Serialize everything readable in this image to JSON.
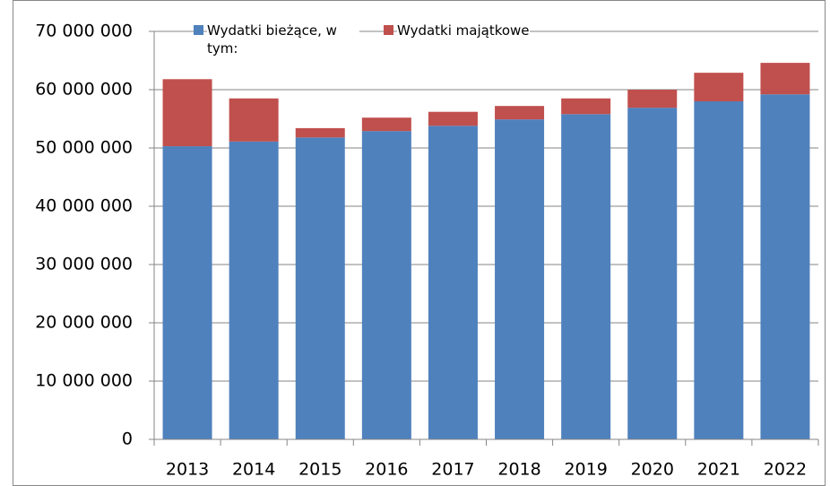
{
  "chart_data": {
    "type": "stacked_bar",
    "categories": [
      "2013",
      "2014",
      "2015",
      "2016",
      "2017",
      "2018",
      "2019",
      "2020",
      "2021",
      "2022"
    ],
    "series": [
      {
        "name": "Wydatki bieżące, w tym:",
        "color": "#4f81bd",
        "values": [
          50300000,
          51100000,
          51800000,
          52900000,
          53800000,
          54900000,
          55800000,
          56900000,
          58000000,
          59200000
        ]
      },
      {
        "name": "Wydatki majątkowe",
        "color": "#c0504d",
        "values": [
          11500000,
          7400000,
          1600000,
          2300000,
          2400000,
          2300000,
          2700000,
          3100000,
          4900000,
          5400000
        ]
      }
    ],
    "ylim": [
      0,
      70000000
    ],
    "yticks": [
      0,
      {
        "value": 10000000,
        "label": "10 000 000"
      },
      {
        "value": 20000000,
        "label": "20 000 000"
      },
      {
        "value": 30000000,
        "label": "30 000 000"
      },
      {
        "value": 40000000,
        "label": "40 000 000"
      },
      {
        "value": 50000000,
        "label": "50 000 000"
      },
      {
        "value": 60000000,
        "label": "60 000 000"
      },
      {
        "value": 70000000,
        "label": "70 000 000"
      }
    ],
    "grid": true,
    "legend": "top"
  }
}
